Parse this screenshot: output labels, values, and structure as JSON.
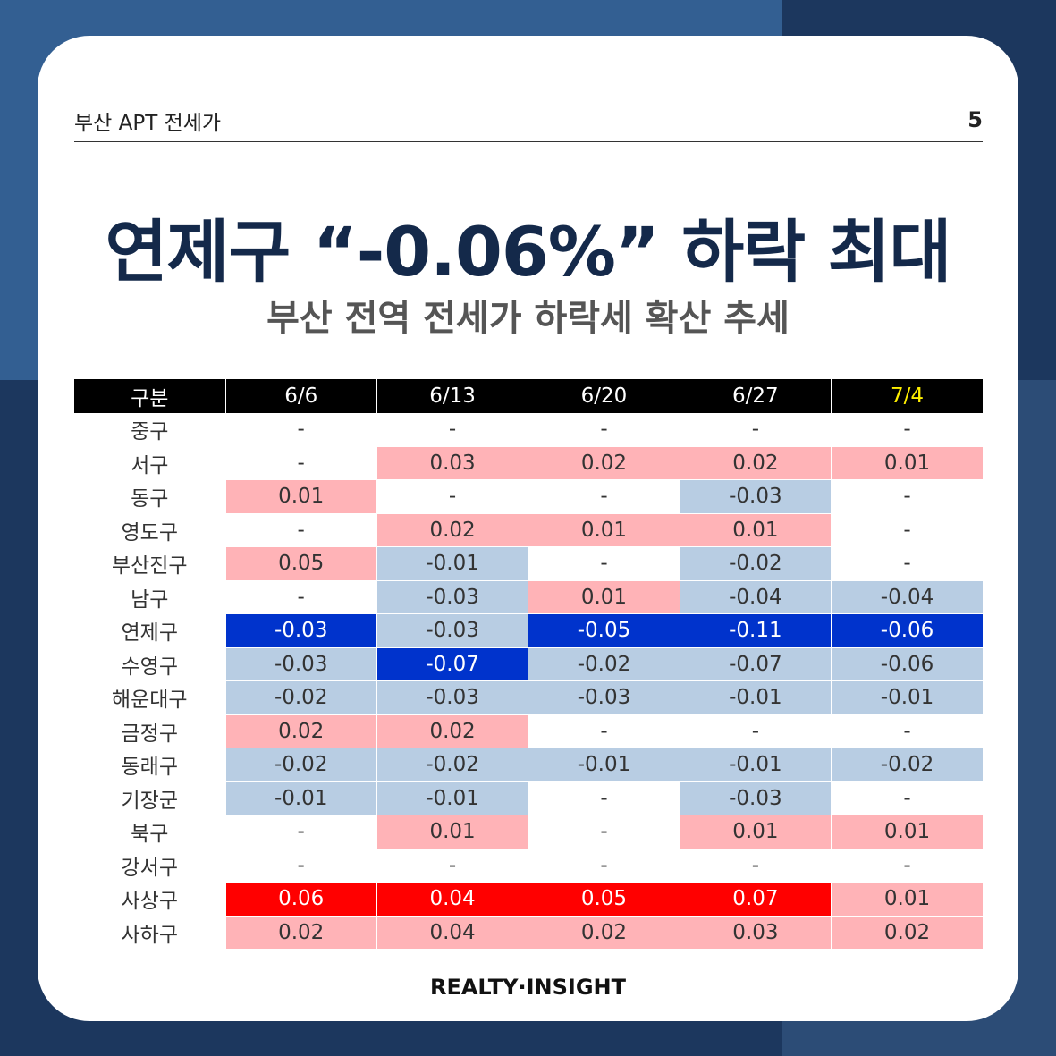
{
  "header": {
    "section": "부산 APT 전세가",
    "page_number": "5"
  },
  "title": "연제구 “-0.06%” 하락 최대",
  "subtitle": "부산 전역 전세가 하락세 확산 추세",
  "table": {
    "corner_label": "구분",
    "columns": [
      {
        "label": "6/6",
        "highlight": false
      },
      {
        "label": "6/13",
        "highlight": false
      },
      {
        "label": "6/20",
        "highlight": false
      },
      {
        "label": "6/27",
        "highlight": false
      },
      {
        "label": "7/4",
        "highlight": true
      }
    ],
    "colors": {
      "light_pink": "#ffb3b7",
      "light_blue": "#b8cde3",
      "dark_blue": "#0033cc",
      "red": "#ff0000",
      "header_bg": "#000000",
      "highlight_text": "#ffef00"
    },
    "rows": [
      {
        "district": "중구",
        "cells": [
          {
            "v": "-",
            "s": "w"
          },
          {
            "v": "-",
            "s": "w"
          },
          {
            "v": "-",
            "s": "w"
          },
          {
            "v": "-",
            "s": "w"
          },
          {
            "v": "-",
            "s": "w"
          }
        ]
      },
      {
        "district": "서구",
        "cells": [
          {
            "v": "-",
            "s": "w"
          },
          {
            "v": "0.03",
            "s": "lp"
          },
          {
            "v": "0.02",
            "s": "lp"
          },
          {
            "v": "0.02",
            "s": "lp"
          },
          {
            "v": "0.01",
            "s": "lp"
          }
        ]
      },
      {
        "district": "동구",
        "cells": [
          {
            "v": "0.01",
            "s": "lp"
          },
          {
            "v": "-",
            "s": "w"
          },
          {
            "v": "-",
            "s": "w"
          },
          {
            "v": "-0.03",
            "s": "lb"
          },
          {
            "v": "-",
            "s": "w"
          }
        ]
      },
      {
        "district": "영도구",
        "cells": [
          {
            "v": "-",
            "s": "w"
          },
          {
            "v": "0.02",
            "s": "lp"
          },
          {
            "v": "0.01",
            "s": "lp"
          },
          {
            "v": "0.01",
            "s": "lp"
          },
          {
            "v": "-",
            "s": "w"
          }
        ]
      },
      {
        "district": "부산진구",
        "cells": [
          {
            "v": "0.05",
            "s": "lp"
          },
          {
            "v": "-0.01",
            "s": "lb"
          },
          {
            "v": "-",
            "s": "w"
          },
          {
            "v": "-0.02",
            "s": "lb"
          },
          {
            "v": "-",
            "s": "w"
          }
        ]
      },
      {
        "district": "남구",
        "cells": [
          {
            "v": "-",
            "s": "w"
          },
          {
            "v": "-0.03",
            "s": "lb"
          },
          {
            "v": "0.01",
            "s": "lp"
          },
          {
            "v": "-0.04",
            "s": "lb"
          },
          {
            "v": "-0.04",
            "s": "lb"
          }
        ]
      },
      {
        "district": "연제구",
        "cells": [
          {
            "v": "-0.03",
            "s": "db"
          },
          {
            "v": "-0.03",
            "s": "lb"
          },
          {
            "v": "-0.05",
            "s": "db"
          },
          {
            "v": "-0.11",
            "s": "db"
          },
          {
            "v": "-0.06",
            "s": "db"
          }
        ]
      },
      {
        "district": "수영구",
        "cells": [
          {
            "v": "-0.03",
            "s": "lb"
          },
          {
            "v": "-0.07",
            "s": "db"
          },
          {
            "v": "-0.02",
            "s": "lb"
          },
          {
            "v": "-0.07",
            "s": "lb"
          },
          {
            "v": "-0.06",
            "s": "lb"
          }
        ]
      },
      {
        "district": "해운대구",
        "cells": [
          {
            "v": "-0.02",
            "s": "lb"
          },
          {
            "v": "-0.03",
            "s": "lb"
          },
          {
            "v": "-0.03",
            "s": "lb"
          },
          {
            "v": "-0.01",
            "s": "lb"
          },
          {
            "v": "-0.01",
            "s": "lb"
          }
        ]
      },
      {
        "district": "금정구",
        "cells": [
          {
            "v": "0.02",
            "s": "lp"
          },
          {
            "v": "0.02",
            "s": "lp"
          },
          {
            "v": "-",
            "s": "w"
          },
          {
            "v": "-",
            "s": "w"
          },
          {
            "v": "-",
            "s": "w"
          }
        ]
      },
      {
        "district": "동래구",
        "cells": [
          {
            "v": "-0.02",
            "s": "lb"
          },
          {
            "v": "-0.02",
            "s": "lb"
          },
          {
            "v": "-0.01",
            "s": "lb"
          },
          {
            "v": "-0.01",
            "s": "lb"
          },
          {
            "v": "-0.02",
            "s": "lb"
          }
        ]
      },
      {
        "district": "기장군",
        "cells": [
          {
            "v": "-0.01",
            "s": "lb"
          },
          {
            "v": "-0.01",
            "s": "lb"
          },
          {
            "v": "-",
            "s": "w"
          },
          {
            "v": "-0.03",
            "s": "lb"
          },
          {
            "v": "-",
            "s": "w"
          }
        ]
      },
      {
        "district": "북구",
        "cells": [
          {
            "v": "-",
            "s": "w"
          },
          {
            "v": "0.01",
            "s": "lp"
          },
          {
            "v": "-",
            "s": "w"
          },
          {
            "v": "0.01",
            "s": "lp"
          },
          {
            "v": "0.01",
            "s": "lp"
          }
        ]
      },
      {
        "district": "강서구",
        "cells": [
          {
            "v": "-",
            "s": "w"
          },
          {
            "v": "-",
            "s": "w"
          },
          {
            "v": "-",
            "s": "w"
          },
          {
            "v": "-",
            "s": "w"
          },
          {
            "v": "-",
            "s": "w"
          }
        ]
      },
      {
        "district": "사상구",
        "cells": [
          {
            "v": "0.06",
            "s": "r"
          },
          {
            "v": "0.04",
            "s": "r"
          },
          {
            "v": "0.05",
            "s": "r"
          },
          {
            "v": "0.07",
            "s": "r"
          },
          {
            "v": "0.01",
            "s": "lp"
          }
        ]
      },
      {
        "district": "사하구",
        "cells": [
          {
            "v": "0.02",
            "s": "lp"
          },
          {
            "v": "0.04",
            "s": "lp"
          },
          {
            "v": "0.02",
            "s": "lp"
          },
          {
            "v": "0.03",
            "s": "lp"
          },
          {
            "v": "0.02",
            "s": "lp"
          }
        ]
      }
    ]
  },
  "footer": {
    "brand": "REALTY·INSIGHT"
  }
}
